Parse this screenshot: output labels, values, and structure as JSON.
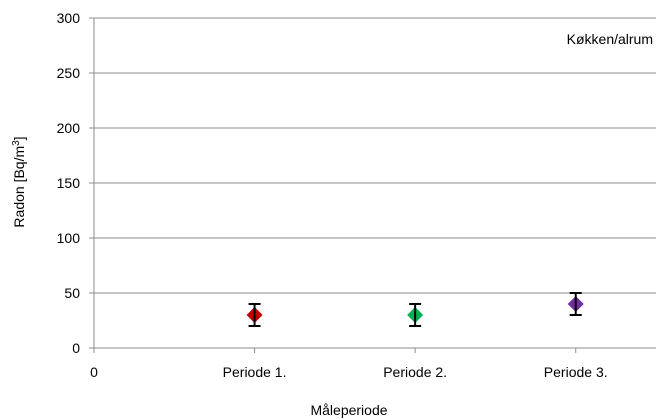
{
  "chart_data": {
    "type": "scatter",
    "annotation": "Køkken/alrum",
    "xlabel": "Måleperiode",
    "ylabel_prefix": "Radon [Bq/m",
    "ylabel_sup": "3",
    "ylabel_suffix": "]",
    "x_origin_label": "0",
    "categories": [
      "Periode 1.",
      "Periode 2.",
      "Periode 3."
    ],
    "ylim": [
      0,
      300
    ],
    "yticks": [
      0,
      50,
      100,
      150,
      200,
      250,
      300
    ],
    "grid": true,
    "series": [
      {
        "values": [
          30,
          30,
          40
        ],
        "error": [
          10,
          10,
          10
        ],
        "colors": [
          "#c00000",
          "#00b050",
          "#7030a0"
        ],
        "marker": "diamond"
      }
    ]
  }
}
